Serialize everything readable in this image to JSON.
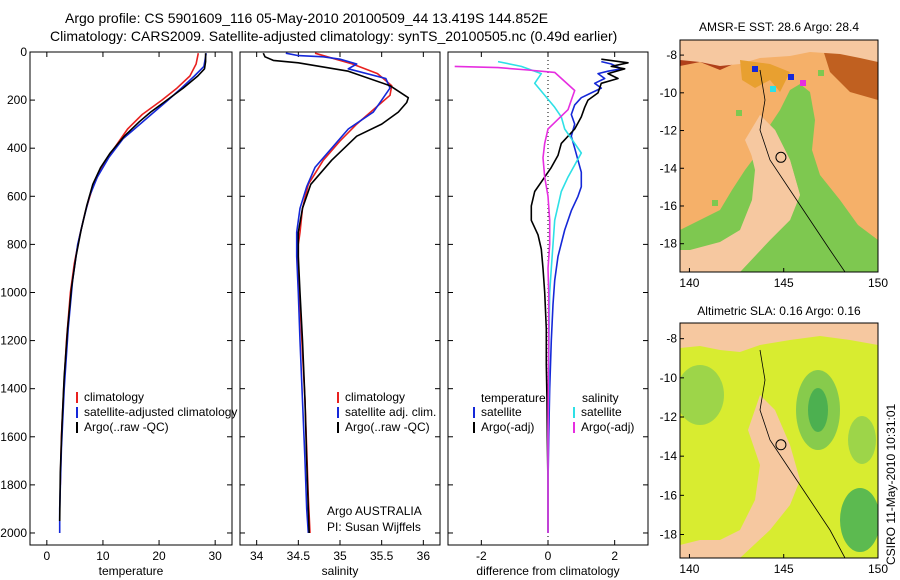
{
  "title": {
    "line1": "Argo profile: CS 5901609_116 05-May-2010 20100509_44 13.419S 144.852E",
    "line2": "Climatology: CARS2009. Satellite-adjusted climatology: synTS_20100505.nc (0.49d earlier)"
  },
  "credit": "CSIRO 11-May-2010 10:31:01",
  "colors": {
    "red": "#e8211f",
    "blue": "#1528d8",
    "black": "#000000",
    "cyan": "#2ee0e6",
    "magenta": "#e62ee0"
  },
  "chart_data": [
    {
      "id": "temperature",
      "type": "line",
      "xlabel": "temperature",
      "xlim": [
        -3,
        33
      ],
      "xticks": [
        0,
        10,
        20,
        30
      ],
      "ylim": [
        2050,
        0
      ],
      "yticks": [
        0,
        200,
        400,
        600,
        800,
        1000,
        1200,
        1400,
        1600,
        1800,
        2000
      ],
      "legend": {
        "position": "lower-right",
        "entries": [
          "climatology",
          "satellite-adjusted climatology",
          "Argo(..raw -QC)"
        ]
      },
      "series": [
        {
          "name": "climatology",
          "color": "red",
          "points": [
            [
              27.0,
              5
            ],
            [
              26.6,
              50
            ],
            [
              25.5,
              100
            ],
            [
              23.2,
              150
            ],
            [
              20.5,
              200
            ],
            [
              17.0,
              260
            ],
            [
              14.4,
              320
            ],
            [
              12.0,
              400
            ],
            [
              9.8,
              480
            ],
            [
              8.2,
              560
            ],
            [
              6.9,
              660
            ],
            [
              5.9,
              760
            ],
            [
              4.9,
              880
            ],
            [
              4.2,
              1000
            ],
            [
              3.5,
              1200
            ],
            [
              3.0,
              1400
            ],
            [
              2.6,
              1600
            ],
            [
              2.4,
              1800
            ]
          ]
        },
        {
          "name": "satellite-adjusted climatology",
          "color": "blue",
          "points": [
            [
              28.4,
              5
            ],
            [
              28.0,
              60
            ],
            [
              26.3,
              100
            ],
            [
              24.0,
              150
            ],
            [
              21.6,
              200
            ],
            [
              18.6,
              260
            ],
            [
              15.6,
              320
            ],
            [
              13.6,
              360
            ],
            [
              11.0,
              440
            ],
            [
              9.0,
              520
            ],
            [
              7.6,
              600
            ],
            [
              6.5,
              700
            ],
            [
              5.5,
              800
            ],
            [
              4.6,
              950
            ],
            [
              3.8,
              1150
            ],
            [
              3.1,
              1400
            ],
            [
              2.6,
              1650
            ],
            [
              2.3,
              1900
            ],
            [
              2.3,
              2000
            ]
          ]
        },
        {
          "name": "Argo(..raw -QC)",
          "color": "black",
          "points": [
            [
              28.3,
              5
            ],
            [
              28.3,
              40
            ],
            [
              28.1,
              70
            ],
            [
              26.9,
              100
            ],
            [
              24.3,
              150
            ],
            [
              21.4,
              200
            ],
            [
              18.5,
              250
            ],
            [
              16.5,
              290
            ],
            [
              13.8,
              350
            ],
            [
              11.3,
              420
            ],
            [
              9.6,
              480
            ],
            [
              8.2,
              550
            ],
            [
              7.1,
              640
            ],
            [
              6.1,
              740
            ],
            [
              5.2,
              850
            ],
            [
              4.4,
              980
            ],
            [
              3.7,
              1150
            ],
            [
              3.1,
              1350
            ],
            [
              2.7,
              1550
            ],
            [
              2.4,
              1750
            ],
            [
              2.3,
              1950
            ]
          ]
        }
      ]
    },
    {
      "id": "salinity",
      "type": "line",
      "xlabel": "salinity",
      "xlim": [
        33.8,
        36.2
      ],
      "xticks": [
        34,
        34.5,
        35,
        35.5,
        36
      ],
      "ylim": [
        2050,
        0
      ],
      "legend": {
        "position": "lower-right",
        "entries": [
          "climatology",
          "satellite adj. clim.",
          "Argo(..raw -QC)"
        ]
      },
      "annotation": {
        "line1": "Argo AUSTRALIA",
        "line2": "PI: Susan Wijffels"
      },
      "series": [
        {
          "name": "climatology",
          "color": "red",
          "points": [
            [
              34.7,
              5
            ],
            [
              34.85,
              20
            ],
            [
              35.15,
              50
            ],
            [
              35.45,
              90
            ],
            [
              35.62,
              140
            ],
            [
              35.6,
              180
            ],
            [
              35.4,
              240
            ],
            [
              35.2,
              300
            ],
            [
              35.0,
              370
            ],
            [
              34.8,
              450
            ],
            [
              34.62,
              550
            ],
            [
              34.55,
              650
            ],
            [
              34.52,
              750
            ],
            [
              34.5,
              800
            ],
            [
              34.5,
              900
            ],
            [
              34.52,
              1050
            ],
            [
              34.55,
              1250
            ],
            [
              34.58,
              1450
            ],
            [
              34.6,
              1650
            ],
            [
              34.62,
              1850
            ],
            [
              34.64,
              2000
            ]
          ]
        },
        {
          "name": "satellite adj. clim.",
          "color": "blue",
          "points": [
            [
              34.35,
              5
            ],
            [
              34.5,
              15
            ],
            [
              34.8,
              20
            ],
            [
              35.0,
              30
            ],
            [
              35.2,
              50
            ],
            [
              35.1,
              70
            ],
            [
              35.55,
              110
            ],
            [
              35.6,
              150
            ],
            [
              35.5,
              200
            ],
            [
              35.4,
              250
            ],
            [
              35.1,
              320
            ],
            [
              34.9,
              400
            ],
            [
              34.7,
              480
            ],
            [
              34.6,
              560
            ],
            [
              34.52,
              650
            ],
            [
              34.48,
              750
            ],
            [
              34.48,
              850
            ],
            [
              34.5,
              1000
            ],
            [
              34.52,
              1200
            ],
            [
              34.55,
              1450
            ],
            [
              34.58,
              1700
            ],
            [
              34.6,
              1900
            ],
            [
              34.62,
              2000
            ]
          ]
        },
        {
          "name": "Argo(..raw -QC)",
          "color": "black",
          "points": [
            [
              34.08,
              5
            ],
            [
              34.1,
              20
            ],
            [
              34.2,
              35
            ],
            [
              34.5,
              45
            ],
            [
              35.1,
              80
            ],
            [
              35.6,
              140
            ],
            [
              35.82,
              190
            ],
            [
              35.8,
              210
            ],
            [
              35.7,
              250
            ],
            [
              35.5,
              300
            ],
            [
              35.2,
              350
            ],
            [
              34.9,
              450
            ],
            [
              34.65,
              550
            ],
            [
              34.55,
              650
            ],
            [
              34.5,
              750
            ],
            [
              34.5,
              850
            ],
            [
              34.52,
              1000
            ],
            [
              34.55,
              1200
            ],
            [
              34.58,
              1450
            ],
            [
              34.6,
              1700
            ],
            [
              34.62,
              1900
            ],
            [
              34.63,
              2000
            ]
          ]
        }
      ]
    },
    {
      "id": "difference",
      "type": "line",
      "xlabel": "difference from climatology",
      "xlim": [
        -3.0,
        3.0
      ],
      "xticks": [
        -2,
        0,
        2
      ],
      "ylim": [
        2050,
        0
      ],
      "legend": {
        "position": "lower-center",
        "col1_title": "temperature",
        "col2_title": "salinity",
        "entries": [
          "satellite",
          "Argo(-adj)",
          "satellite",
          "Argo(-adj)"
        ]
      },
      "series": [
        {
          "name": "temperature satellite",
          "color": "blue",
          "points": [
            [
              1.6,
              40
            ],
            [
              1.9,
              50
            ],
            [
              2.2,
              70
            ],
            [
              1.8,
              80
            ],
            [
              1.5,
              90
            ],
            [
              1.7,
              110
            ],
            [
              1.4,
              130
            ],
            [
              1.6,
              150
            ],
            [
              1.3,
              170
            ],
            [
              1.0,
              190
            ],
            [
              0.8,
              220
            ],
            [
              0.7,
              260
            ],
            [
              0.8,
              300
            ],
            [
              0.7,
              350
            ],
            [
              0.8,
              400
            ],
            [
              0.9,
              450
            ],
            [
              1.0,
              500
            ],
            [
              1.0,
              560
            ],
            [
              0.9,
              600
            ],
            [
              0.7,
              660
            ],
            [
              0.5,
              740
            ],
            [
              0.3,
              850
            ],
            [
              0.2,
              950
            ],
            [
              0.15,
              1050
            ],
            [
              0.1,
              1200
            ],
            [
              0.05,
              1400
            ],
            [
              0.02,
              1600
            ],
            [
              0.0,
              1800
            ],
            [
              0.0,
              2000
            ]
          ]
        },
        {
          "name": "temperature Argo(-adj)",
          "color": "black",
          "points": [
            [
              1.6,
              30
            ],
            [
              2.4,
              45
            ],
            [
              1.9,
              60
            ],
            [
              2.3,
              70
            ],
            [
              1.8,
              90
            ],
            [
              2.1,
              110
            ],
            [
              1.6,
              130
            ],
            [
              1.5,
              170
            ],
            [
              1.2,
              200
            ],
            [
              1.1,
              230
            ],
            [
              1.0,
              270
            ],
            [
              0.8,
              320
            ],
            [
              0.4,
              380
            ],
            [
              0.3,
              430
            ],
            [
              0.1,
              480
            ],
            [
              -0.1,
              520
            ],
            [
              -0.4,
              580
            ],
            [
              -0.5,
              640
            ],
            [
              -0.5,
              700
            ],
            [
              -0.3,
              760
            ],
            [
              -0.2,
              820
            ],
            [
              -0.15,
              900
            ],
            [
              -0.1,
              1000
            ],
            [
              -0.05,
              1150
            ],
            [
              -0.05,
              1300
            ],
            [
              -0.03,
              1450
            ],
            [
              -0.02,
              1600
            ],
            [
              0.0,
              1800
            ],
            [
              0.0,
              2000
            ]
          ]
        },
        {
          "name": "salinity satellite",
          "color": "cyan",
          "points": [
            [
              -1.5,
              40
            ],
            [
              -0.8,
              60
            ],
            [
              -0.2,
              90
            ],
            [
              -0.4,
              130
            ],
            [
              -0.1,
              180
            ],
            [
              0.2,
              230
            ],
            [
              0.4,
              270
            ],
            [
              0.5,
              320
            ],
            [
              0.8,
              380
            ],
            [
              1.0,
              420
            ],
            [
              0.8,
              470
            ],
            [
              0.6,
              520
            ],
            [
              0.4,
              580
            ],
            [
              0.3,
              640
            ],
            [
              0.2,
              700
            ],
            [
              0.15,
              800
            ],
            [
              0.1,
              900
            ],
            [
              0.05,
              1000
            ],
            [
              0.03,
              1200
            ],
            [
              0.02,
              1400
            ],
            [
              0.0,
              1600
            ],
            [
              0.0,
              1800
            ],
            [
              0.0,
              2000
            ]
          ]
        },
        {
          "name": "salinity Argo(-adj)",
          "color": "magenta",
          "points": [
            [
              -2.8,
              60
            ],
            [
              -1.5,
              65
            ],
            [
              -0.6,
              75
            ],
            [
              0.2,
              85
            ],
            [
              0.8,
              160
            ],
            [
              0.7,
              200
            ],
            [
              0.6,
              240
            ],
            [
              0.3,
              280
            ],
            [
              0.0,
              320
            ],
            [
              -0.1,
              380
            ],
            [
              -0.15,
              440
            ],
            [
              -0.1,
              520
            ],
            [
              0.0,
              600
            ],
            [
              0.05,
              700
            ],
            [
              0.05,
              800
            ],
            [
              0.0,
              900
            ],
            [
              0.02,
              1000
            ],
            [
              0.02,
              1200
            ],
            [
              0.01,
              1400
            ],
            [
              0.0,
              1600
            ],
            [
              0.0,
              1800
            ],
            [
              0.0,
              2000
            ]
          ]
        }
      ]
    },
    {
      "id": "sst_map",
      "type": "heatmap",
      "title": "AMSR-E SST: 28.6 Argo: 28.4",
      "xlim": [
        139.5,
        150.0
      ],
      "ylim": [
        -19.5,
        -7.2
      ],
      "xticks": [
        140,
        145,
        150
      ],
      "yticks": [
        -8,
        -10,
        -12,
        -14,
        -16,
        -18
      ],
      "marker": {
        "lon": 144.852,
        "lat": -13.419
      }
    },
    {
      "id": "sla_map",
      "type": "heatmap",
      "title": "Altimetric SLA: 0.16 Argo: 0.16",
      "xlim": [
        139.5,
        150.0
      ],
      "ylim": [
        -19.2,
        -7.2
      ],
      "xticks": [
        140,
        145,
        150
      ],
      "yticks": [
        -8,
        -10,
        -12,
        -14,
        -16,
        -18
      ],
      "marker": {
        "lon": 144.852,
        "lat": -13.419
      }
    }
  ]
}
